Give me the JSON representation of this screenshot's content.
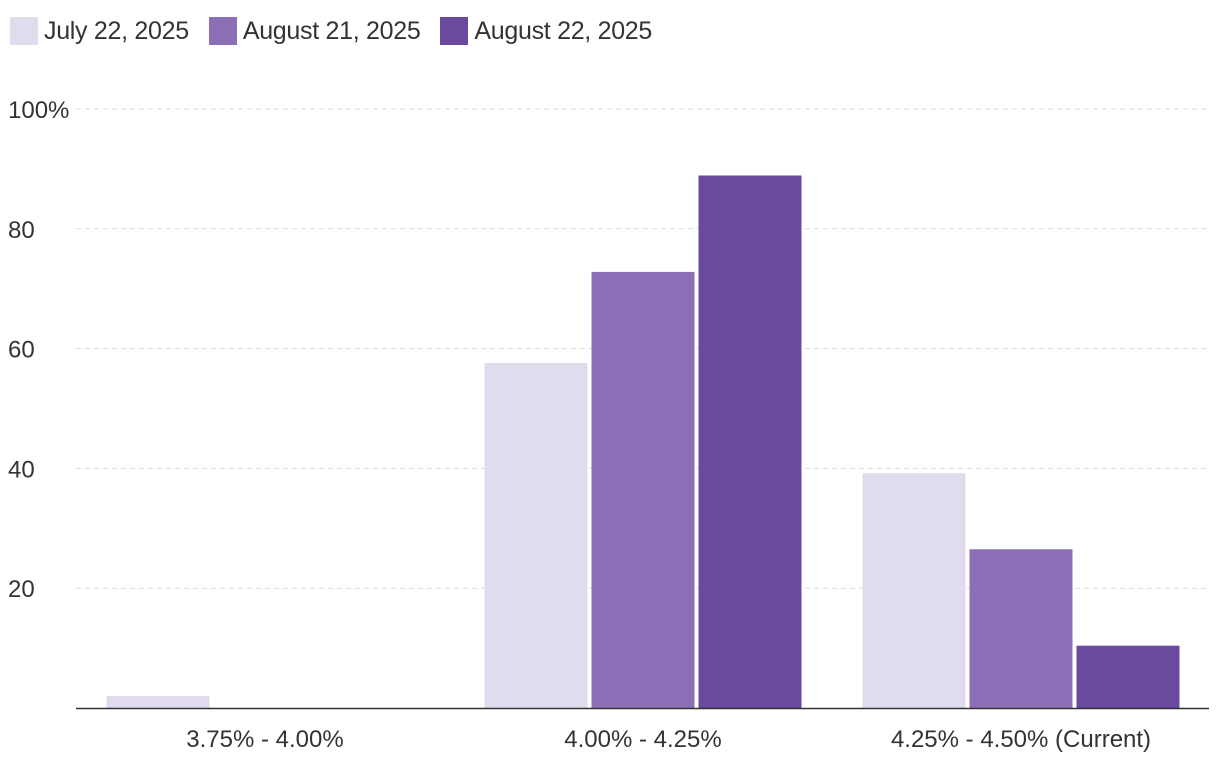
{
  "chart_data": {
    "type": "bar",
    "categories": [
      "3.75% - 4.00%",
      "4.00% - 4.25%",
      "4.25% - 4.50% (Current)"
    ],
    "series": [
      {
        "name": "July 22, 2025",
        "color": "#e1dbee",
        "values": [
          2,
          57.6,
          39.2
        ]
      },
      {
        "name": "August 21, 2025",
        "color": "#8d6fb8",
        "values": [
          0,
          72.8,
          26.5
        ]
      },
      {
        "name": "August 22, 2025",
        "color": "#6a4a9e",
        "values": [
          0,
          88.9,
          10.4
        ]
      }
    ],
    "yticks": [
      {
        "value": 100,
        "label": "100%"
      },
      {
        "value": 80,
        "label": "80"
      },
      {
        "value": 60,
        "label": "60"
      },
      {
        "value": 40,
        "label": "40"
      },
      {
        "value": 20,
        "label": "20"
      }
    ],
    "ylim": [
      0,
      100
    ],
    "grid": true,
    "legend_position": "top-left"
  }
}
